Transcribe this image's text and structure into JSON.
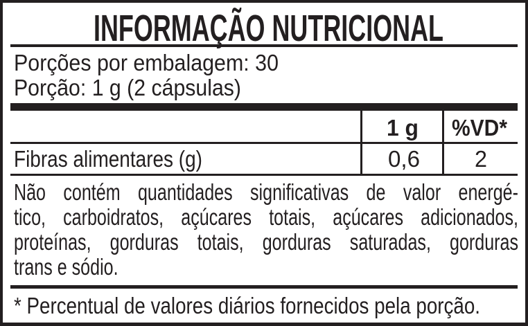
{
  "title": "INFORMAÇÃO NUTRICIONAL",
  "servings_per_package": "Porções por embalagem: 30",
  "serving_size": "Porção: 1 g (2 cápsulas)",
  "table": {
    "headers": [
      "",
      "1 g",
      "%VD*"
    ],
    "rows": [
      {
        "nutrient": "Fibras alimentares (g)",
        "amount": "0,6",
        "dv": "2"
      }
    ]
  },
  "note_lines": [
    "Não contém quantidades significativas de valor energé-",
    "tico, carboidratos, açúcares totais, açúcares adicionados,",
    "proteínas, gorduras totais, gorduras saturadas, gorduras",
    "trans e sódio."
  ],
  "footnote": "* Percentual de valores diários fornecidos pela porção.",
  "colors": {
    "ink": "#231f20",
    "background": "#ffffff"
  }
}
